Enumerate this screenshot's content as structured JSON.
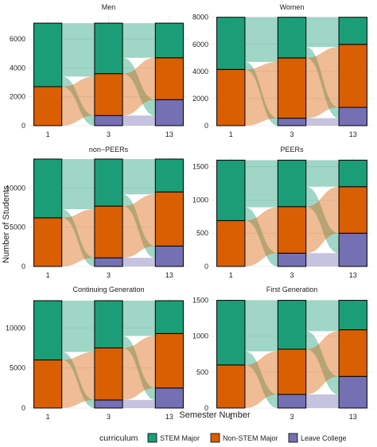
{
  "x_ticks": [
    "1",
    "3",
    "13"
  ],
  "xlabel": "Semester Number",
  "ylabel": "Number of Students",
  "legend": {
    "title": "curriculum",
    "items": [
      {
        "label": "STEM Major",
        "color": "#1b9e77"
      },
      {
        "label": "Non-STEM Major",
        "color": "#d95f02"
      },
      {
        "label": "Leave College",
        "color": "#7570b3"
      }
    ]
  },
  "chart_data": [
    {
      "type": "bar",
      "title": "Men",
      "categories": [
        "1",
        "3",
        "13"
      ],
      "series": [
        {
          "name": "Leave College",
          "values": [
            0,
            700,
            1800
          ]
        },
        {
          "name": "Non-STEM Major",
          "values": [
            2700,
            2900,
            2900
          ]
        },
        {
          "name": "STEM Major",
          "values": [
            4400,
            3500,
            2400
          ]
        }
      ],
      "yticks": [
        0,
        2000,
        4000,
        6000
      ],
      "ylim": [
        0,
        7600
      ]
    },
    {
      "type": "bar",
      "title": "Women",
      "categories": [
        "1",
        "3",
        "13"
      ],
      "series": [
        {
          "name": "Leave College",
          "values": [
            0,
            550,
            1350
          ]
        },
        {
          "name": "Non-STEM Major",
          "values": [
            4150,
            4450,
            4650
          ]
        },
        {
          "name": "STEM Major",
          "values": [
            3850,
            3000,
            2000
          ]
        }
      ],
      "yticks": [
        0,
        2000,
        4000,
        6000,
        8000
      ],
      "ylim": [
        0,
        8100
      ]
    },
    {
      "type": "bar",
      "title": "non−PEERs",
      "categories": [
        "1",
        "3",
        "13"
      ],
      "series": [
        {
          "name": "Leave College",
          "values": [
            0,
            1100,
            2600
          ]
        },
        {
          "name": "Non-STEM Major",
          "values": [
            6200,
            6600,
            6900
          ]
        },
        {
          "name": "STEM Major",
          "values": [
            7500,
            6000,
            4200
          ]
        }
      ],
      "yticks": [
        0,
        5000,
        10000
      ],
      "ylim": [
        0,
        13900
      ]
    },
    {
      "type": "bar",
      "title": "PEERs",
      "categories": [
        "1",
        "3",
        "13"
      ],
      "series": [
        {
          "name": "Leave College",
          "values": [
            0,
            200,
            500
          ]
        },
        {
          "name": "Non-STEM Major",
          "values": [
            690,
            700,
            700
          ]
        },
        {
          "name": "STEM Major",
          "values": [
            910,
            700,
            400
          ]
        }
      ],
      "yticks": [
        0,
        500,
        1000,
        1500
      ],
      "ylim": [
        0,
        1640
      ]
    },
    {
      "type": "bar",
      "title": "Continuing Generation",
      "categories": [
        "1",
        "3",
        "13"
      ],
      "series": [
        {
          "name": "Leave College",
          "values": [
            0,
            1000,
            2500
          ]
        },
        {
          "name": "Non-STEM Major",
          "values": [
            6000,
            6500,
            6800
          ]
        },
        {
          "name": "STEM Major",
          "values": [
            7400,
            5900,
            4100
          ]
        }
      ],
      "yticks": [
        0,
        5000,
        10000
      ],
      "ylim": [
        0,
        13800
      ]
    },
    {
      "type": "bar",
      "title": "First Generation",
      "categories": [
        "1",
        "3",
        "13"
      ],
      "series": [
        {
          "name": "Leave College",
          "values": [
            0,
            190,
            440
          ]
        },
        {
          "name": "Non-STEM Major",
          "values": [
            600,
            630,
            650
          ]
        },
        {
          "name": "STEM Major",
          "values": [
            900,
            680,
            410
          ]
        }
      ],
      "yticks": [
        0,
        500,
        1000,
        1500
      ],
      "ylim": [
        0,
        1540
      ]
    }
  ]
}
